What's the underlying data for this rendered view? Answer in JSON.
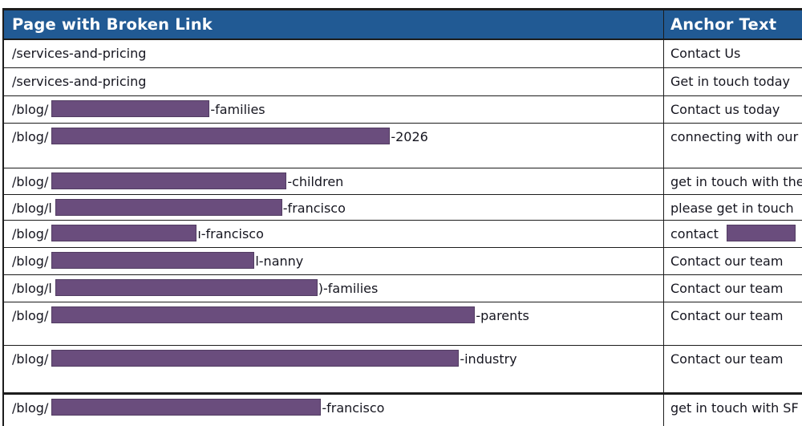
{
  "header": {
    "page_col": "Page with Broken Link",
    "anchor_col": "Anchor Text"
  },
  "colors": {
    "header_bg": "#215a94",
    "header_text": "#ffffff",
    "redaction": "#6a4d7d",
    "redaction_border": "#523d62",
    "border": "#1c1c1c",
    "text": "#15151f"
  },
  "rows": [
    {
      "height": 35,
      "page_prefix": "/services-and-pricing",
      "page_redaction_width": 0,
      "page_suffix": "",
      "anchor_text": "Contact Us",
      "anchor_redaction_width": 0
    },
    {
      "height": 35,
      "page_prefix": "/services-and-pricing",
      "page_redaction_width": 0,
      "page_suffix": "",
      "anchor_text": "Get in touch today",
      "anchor_redaction_width": 0
    },
    {
      "height": 34,
      "page_prefix": "/blog/",
      "page_redaction_width": 197,
      "page_suffix": "-families",
      "anchor_text": "Contact us today",
      "anchor_redaction_width": 0
    },
    {
      "height": 56,
      "page_prefix": "/blog/",
      "page_redaction_width": 422,
      "page_suffix": "-2026",
      "anchor_text": "connecting with our",
      "anchor_redaction_width": 0
    },
    {
      "height": 33,
      "page_prefix": "/blog/",
      "page_redaction_width": 293,
      "page_suffix": "-children",
      "anchor_text": "get in touch with the",
      "anchor_redaction_width": 0
    },
    {
      "height": 32,
      "page_prefix": "/blog/l",
      "page_redaction_width": 283,
      "page_suffix": "-francisco",
      "anchor_text": "please get in touch",
      "anchor_redaction_width": 0
    },
    {
      "height": 34,
      "page_prefix": "/blog/",
      "page_redaction_width": 181,
      "page_suffix": "ı-francisco",
      "anchor_text": "contact",
      "anchor_redaction_width": 86
    },
    {
      "height": 34,
      "page_prefix": "/blog/",
      "page_redaction_width": 253,
      "page_suffix": "l-nanny",
      "anchor_text": "Contact our team",
      "anchor_redaction_width": 0
    },
    {
      "height": 34,
      "page_prefix": "/blog/l",
      "page_redaction_width": 327,
      "page_suffix": ")-families",
      "anchor_text": "Contact our team",
      "anchor_redaction_width": 0
    },
    {
      "height": 54,
      "page_prefix": "/blog/",
      "page_redaction_width": 528,
      "page_suffix": "-parents",
      "anchor_text": "Contact our team",
      "anchor_redaction_width": 0
    },
    {
      "height": 58,
      "page_prefix": "/blog/",
      "page_redaction_width": 508,
      "page_suffix": "-industry",
      "anchor_text": "Contact our team",
      "anchor_redaction_width": 0
    },
    {
      "height": 60,
      "page_prefix": "/blog/",
      "page_redaction_width": 336,
      "page_suffix": "-francisco",
      "anchor_text": "get in touch with SF",
      "anchor_redaction_width": 0,
      "thick_top": true
    }
  ]
}
